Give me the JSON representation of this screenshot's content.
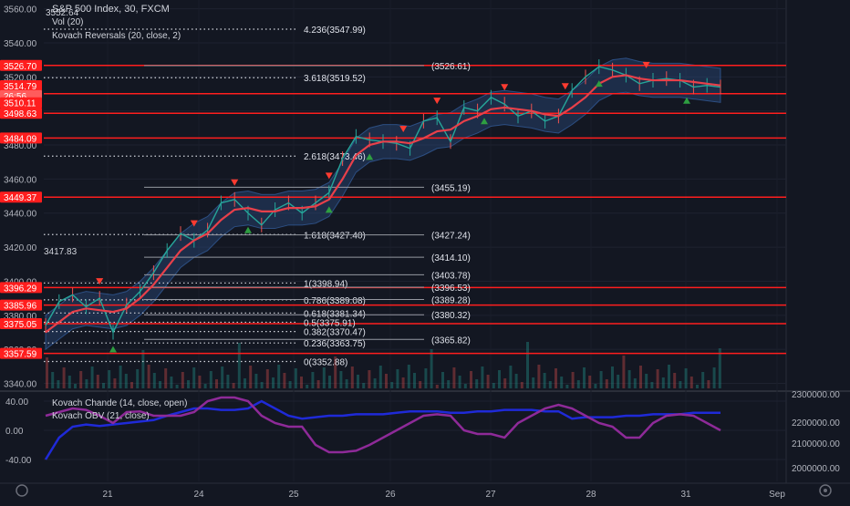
{
  "header": {
    "title": "S&P 500 Index, 30, FXCM",
    "indicator_1": "Vol (20)",
    "indicator_2": "Kovach Reversals (20, close, 2)",
    "partial_price": "3552.64"
  },
  "lower_pane": {
    "label_1": "Kovach Chande (14, close, open)",
    "label_2": "Kovach OBV (21, close)"
  },
  "chart_data": {
    "type": "line",
    "title": "S&P 500 Index, 30, FXCM",
    "x_ticks": [
      "21",
      "24",
      "25",
      "26",
      "27",
      "28",
      "31",
      "Sep"
    ],
    "price_axis": {
      "ticks": [
        "3560.00",
        "3540.00",
        "3520.00",
        "3500.00",
        "3480.00",
        "3460.00",
        "3440.00",
        "3420.00",
        "3400.00",
        "3380.00",
        "3360.00",
        "3340.00"
      ],
      "ylim": [
        3336,
        3563
      ]
    },
    "price_badges": [
      {
        "label": "3526.70",
        "value": 3526.7
      },
      {
        "label": "3514.79",
        "value": 3514.79
      },
      {
        "label": "26:56",
        "value": 3509.0
      },
      {
        "label": "3510.11",
        "value": 3504.8
      },
      {
        "label": "3498.63",
        "value": 3498.63
      },
      {
        "label": "3484.09",
        "value": 3484.09
      },
      {
        "label": "3449.37",
        "value": 3449.37
      },
      {
        "label": "3396.29",
        "value": 3396.29
      },
      {
        "label": "3385.96",
        "value": 3385.96
      },
      {
        "label": "3375.05",
        "value": 3375.05
      },
      {
        "label": "3357.59",
        "value": 3357.59
      }
    ],
    "horizontal_levels": [
      3526.7,
      3510.11,
      3498.63,
      3484.09,
      3449.37,
      3396.29,
      3385.96,
      3375.05,
      3357.59
    ],
    "fib_left": [
      {
        "label": "4.236(3547.99)",
        "value": 3547.99
      },
      {
        "label": "3.618(3519.52)",
        "value": 3519.52
      },
      {
        "label": "2.618(3473.46)",
        "value": 3473.46
      },
      {
        "label": "1.618(3427.40)",
        "value": 3427.4
      },
      {
        "label": "1(3398.94)",
        "value": 3398.94
      },
      {
        "label": "0.786(3389.08)",
        "value": 3389.08
      },
      {
        "label": "0.618(3381.34)",
        "value": 3381.34
      },
      {
        "label": "0.5(3375.91)",
        "value": 3375.91
      },
      {
        "label": "0.382(3370.47)",
        "value": 3370.47
      },
      {
        "label": "0.236(3363.75)",
        "value": 3363.75
      },
      {
        "label": "0(3352.88)",
        "value": 3352.88
      }
    ],
    "fib_right": [
      {
        "label": "(3526.61)",
        "value": 3526.61
      },
      {
        "label": "(3455.19)",
        "value": 3455.19
      },
      {
        "label": "(3427.24)",
        "value": 3427.24
      },
      {
        "label": "(3414.10)",
        "value": 3414.1
      },
      {
        "label": "(3403.78)",
        "value": 3403.78
      },
      {
        "label": "(3396.53)",
        "value": 3396.53
      },
      {
        "label": "(3389.28)",
        "value": 3389.28
      },
      {
        "label": "(3380.32)",
        "value": 3380.32
      },
      {
        "label": "(3365.82)",
        "value": 3365.82
      }
    ],
    "left_marker": {
      "label": "3417.83",
      "value": 3417.83
    },
    "price_series": {
      "name": "",
      "x": [
        0,
        0.02,
        0.04,
        0.06,
        0.08,
        0.1,
        0.12,
        0.14,
        0.16,
        0.18,
        0.2,
        0.22,
        0.24,
        0.26,
        0.28,
        0.3,
        0.32,
        0.34,
        0.36,
        0.38,
        0.4,
        0.42,
        0.44,
        0.46,
        0.48,
        0.5,
        0.52,
        0.54,
        0.56,
        0.58,
        0.6,
        0.62,
        0.64,
        0.66,
        0.68,
        0.7,
        0.72,
        0.74,
        0.76,
        0.78,
        0.8,
        0.82,
        0.84,
        0.86,
        0.88,
        0.9,
        0.92,
        0.94,
        0.96,
        0.98,
        1.0
      ],
      "values": [
        3374,
        3388,
        3392,
        3385,
        3390,
        3370,
        3386,
        3394,
        3405,
        3418,
        3428,
        3424,
        3430,
        3446,
        3448,
        3440,
        3433,
        3442,
        3446,
        3440,
        3446,
        3452,
        3472,
        3485,
        3483,
        3482,
        3481,
        3478,
        3494,
        3496,
        3482,
        3502,
        3500,
        3508,
        3504,
        3497,
        3500,
        3494,
        3497,
        3512,
        3520,
        3526,
        3524,
        3521,
        3516,
        3518,
        3519,
        3518,
        3514,
        3515,
        3514
      ]
    },
    "ma_series": [
      3370,
      3376,
      3382,
      3384,
      3383,
      3382,
      3384,
      3390,
      3398,
      3408,
      3418,
      3424,
      3428,
      3436,
      3442,
      3443,
      3441,
      3441,
      3443,
      3443,
      3444,
      3448,
      3460,
      3474,
      3480,
      3482,
      3482,
      3481,
      3484,
      3488,
      3489,
      3494,
      3497,
      3501,
      3502,
      3501,
      3500,
      3498,
      3497,
      3502,
      3508,
      3516,
      3520,
      3521,
      3519,
      3518,
      3518,
      3518,
      3517,
      3516,
      3515
    ],
    "band_width": 10,
    "sell_signals": [
      0.08,
      0.22,
      0.28,
      0.42,
      0.53,
      0.58,
      0.68,
      0.77,
      0.89
    ],
    "buy_signals": [
      0.1,
      0.3,
      0.42,
      0.48,
      0.65,
      0.82,
      0.95
    ],
    "lower_axis": {
      "left_ticks": [
        "40.00",
        "0.00",
        "-40.00"
      ],
      "right_ticks": [
        "2300000.00",
        "2200000.00",
        "2100000.00",
        "2000000.00"
      ]
    },
    "chande_series": [
      -40,
      -10,
      5,
      8,
      6,
      8,
      10,
      12,
      14,
      20,
      25,
      30,
      30,
      28,
      28,
      30,
      40,
      30,
      20,
      16,
      18,
      20,
      20,
      22,
      22,
      22,
      24,
      26,
      26,
      26,
      24,
      24,
      26,
      26,
      28,
      28,
      28,
      26,
      26,
      16,
      18,
      18,
      18,
      20,
      20,
      22,
      22,
      22,
      24,
      24,
      24
    ],
    "obv_series": [
      20,
      25,
      30,
      28,
      20,
      10,
      25,
      26,
      20,
      20,
      20,
      25,
      40,
      45,
      45,
      40,
      20,
      10,
      5,
      5,
      -20,
      -30,
      -30,
      -28,
      -20,
      -10,
      0,
      10,
      20,
      22,
      20,
      0,
      -5,
      -5,
      -10,
      10,
      20,
      30,
      35,
      30,
      20,
      10,
      5,
      -10,
      -10,
      10,
      20,
      22,
      20,
      10,
      0
    ]
  }
}
